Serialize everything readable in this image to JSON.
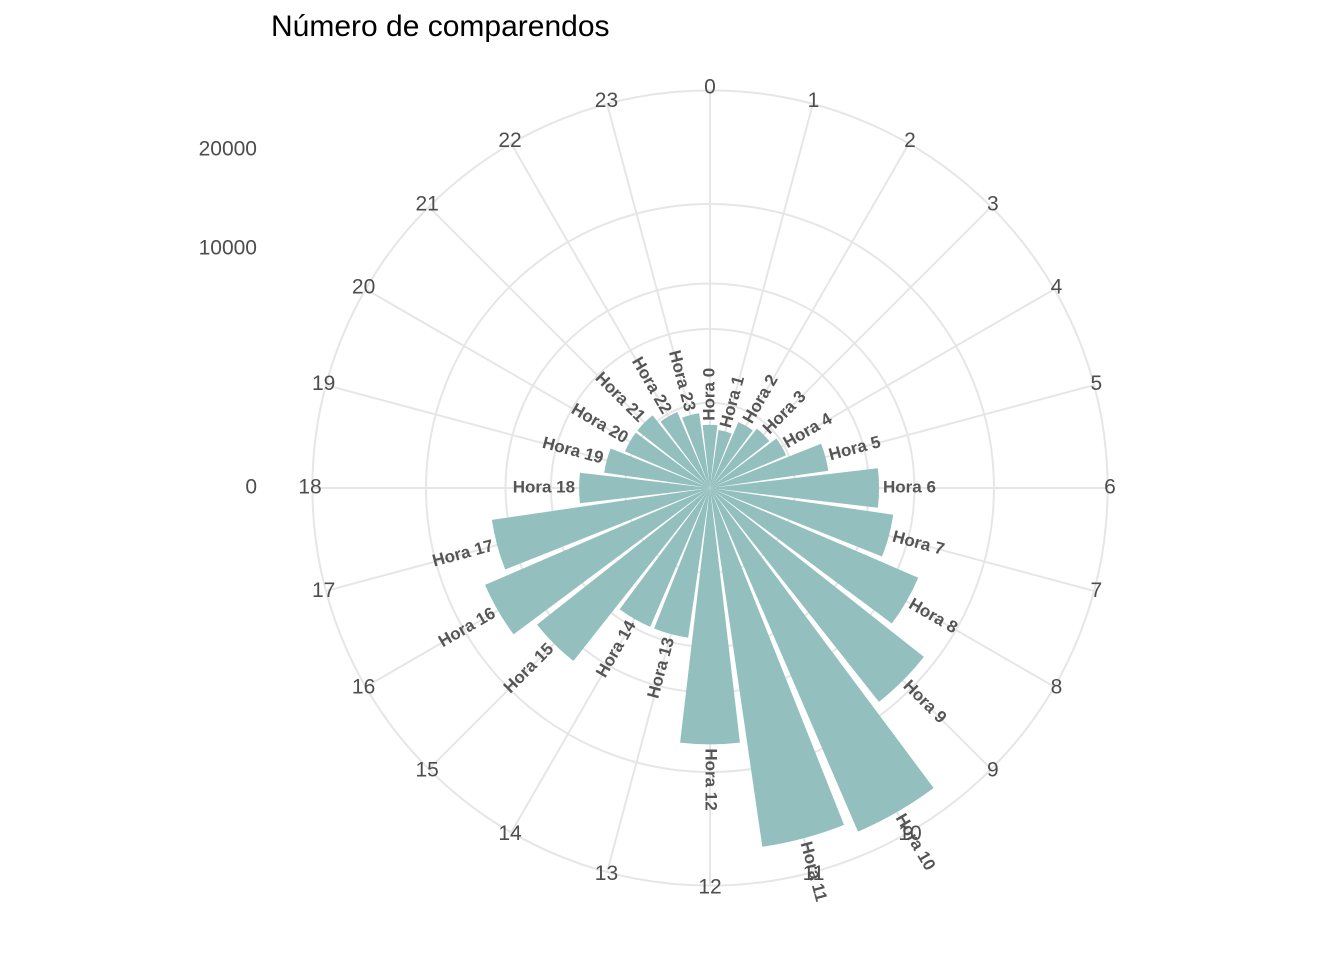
{
  "chart_data": {
    "type": "bar",
    "coordinate_system": "polar",
    "title": "Número de comparendos",
    "xlabel": "",
    "ylabel": "",
    "categories": [
      "0",
      "1",
      "2",
      "3",
      "4",
      "5",
      "6",
      "7",
      "8",
      "9",
      "10",
      "11",
      "12",
      "13",
      "14",
      "15",
      "16",
      "17",
      "18",
      "19",
      "20",
      "21",
      "22",
      "23"
    ],
    "bar_labels": [
      "Hora 0",
      "Hora 1",
      "Hora 2",
      "Hora 3",
      "Hora 4",
      "Hora 5",
      "Hora 6",
      "Hora 7",
      "Hora 8",
      "Hora 9",
      "Hora 10",
      "Hora 11",
      "Hora 12",
      "Hora 13",
      "Hora 14",
      "Hora 15",
      "Hora 16",
      "Hora 17",
      "Hora 18",
      "Hora 19",
      "Hora 20",
      "Hora 21",
      "Hora 22",
      "Hora 23"
    ],
    "values": [
      700,
      600,
      900,
      1000,
      1200,
      2500,
      5000,
      6000,
      9000,
      13000,
      24500,
      23000,
      11500,
      4000,
      4000,
      8500,
      10500,
      8500,
      3000,
      2000,
      1500,
      1500,
      1200,
      1000
    ],
    "radial_axis": {
      "ticks": [
        0,
        10000,
        20000
      ],
      "range": [
        0,
        28000
      ]
    },
    "grid": true,
    "colors": {
      "bar": "#93bfbf",
      "grid": "#e6e6e6",
      "label": "#555555",
      "axis_text": "#4d4d4d"
    }
  }
}
